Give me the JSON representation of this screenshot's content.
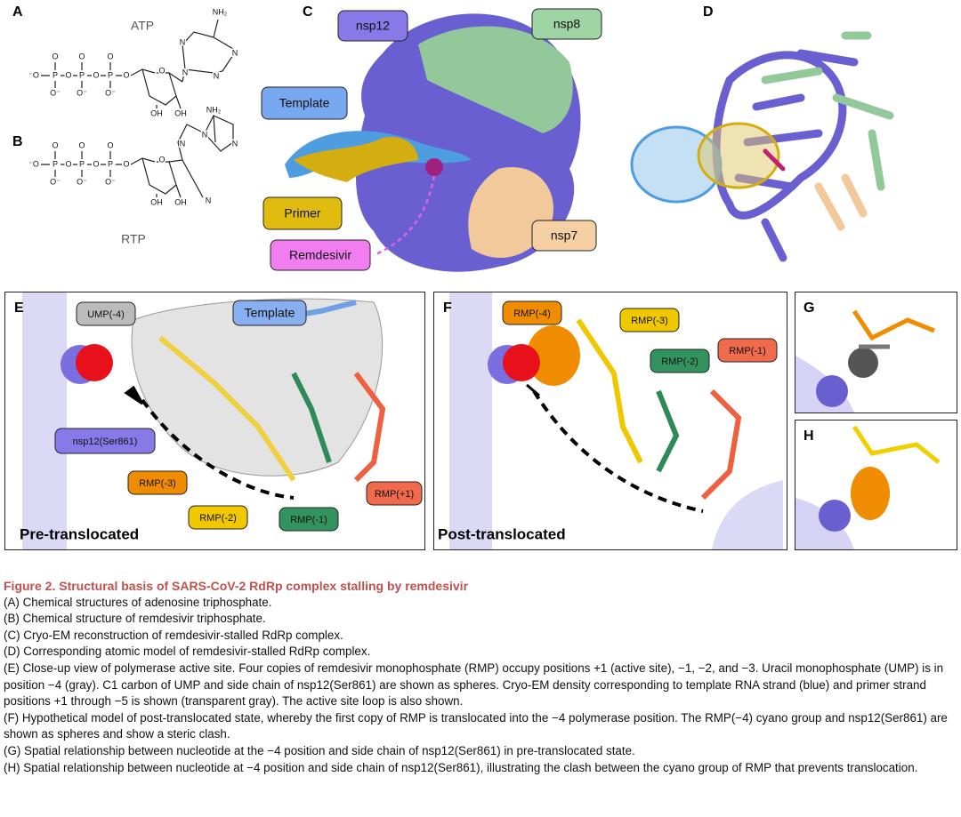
{
  "panel_a": {
    "letter": "A",
    "label": "ATP",
    "atoms": [
      "⁻O",
      "P",
      "O",
      "P",
      "O",
      "P",
      "O",
      "O",
      "O",
      "O",
      "O⁻",
      "O⁻",
      "O⁻",
      "O",
      "OH",
      "OH",
      "N",
      "N",
      "N",
      "N",
      "NH₂"
    ]
  },
  "panel_b": {
    "letter": "B",
    "label": "RTP",
    "atoms": [
      "⁻O",
      "P",
      "O",
      "P",
      "O",
      "P",
      "O",
      "O",
      "O",
      "O",
      "O⁻",
      "O⁻",
      "O⁻",
      "O",
      "OH",
      "OH",
      "N",
      "N",
      "N",
      "NH₂",
      "N"
    ]
  },
  "panel_c": {
    "letter": "C",
    "labels": [
      "nsp12",
      "nsp8",
      "Template",
      "Primer",
      "Remdesivir",
      "nsp7"
    ]
  },
  "panel_d": {
    "letter": "D"
  },
  "panel_e": {
    "letter": "E",
    "labels": [
      "UMP(-4)",
      "Template",
      "nsp12(Ser861)",
      "RMP(-3)",
      "RMP(-2)",
      "RMP(-1)",
      "RMP(+1)"
    ],
    "state": "Pre-translocated"
  },
  "panel_f": {
    "letter": "F",
    "labels": [
      "RMP(-4)",
      "RMP(-3)",
      "RMP(-2)",
      "RMP(-1)"
    ],
    "state": "Post-translocated"
  },
  "panel_g": {
    "letter": "G"
  },
  "panel_h": {
    "letter": "H"
  },
  "caption": {
    "title": "Figure 2. Structural basis of SARS-CoV-2 RdRp complex stalling by remdesivir",
    "items": [
      "(A) Chemical structures of adenosine triphosphate.",
      "(B) Chemical structure of remdesivir triphosphate.",
      "(C) Cryo-EM reconstruction of remdesivir-stalled RdRp complex.",
      "(D) Corresponding atomic model of remdesivir-stalled RdRp complex.",
      "(E) Close-up view of polymerase active site. Four copies of remdesivir monophosphate (RMP) occupy positions +1 (active site), −1, −2, and −3. Uracil monophosphate (UMP) is in position −4 (gray). C1 carbon of UMP and side chain of nsp12(Ser861) are shown as spheres. Cryo-EM density corresponding to template RNA strand (blue) and primer strand positions +1 through −5 is shown (transparent gray). The active site loop is also shown.",
      "(F) Hypothetical model of post-translocated state, whereby the first copy of RMP is translocated into the −4 polymerase position. The RMP(−4) cyano group and nsp12(Ser861) are shown as spheres and show a steric clash.",
      "(G) Spatial relationship between nucleotide at the −4 position and side chain of nsp12(Ser861) in pre-translocated state.",
      "(H) Spatial relationship between nucleotide at −4 position and side chain of nsp12(Ser861), illustrating the clash between the cyano group of RMP that prevents translocation."
    ]
  }
}
